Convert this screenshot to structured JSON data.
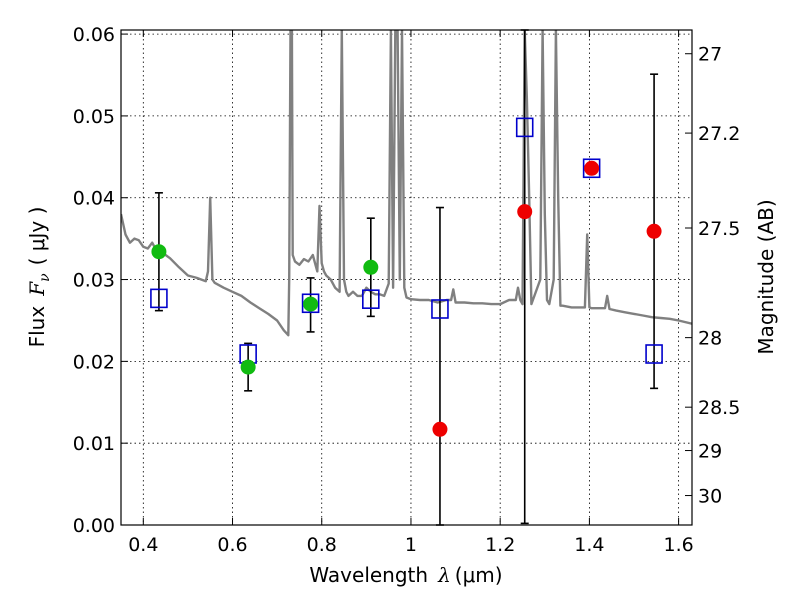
{
  "chart_data": {
    "type": "scatter",
    "xlabel": {
      "text": "Wavelength",
      "symbol": "λ",
      "unit": "(μm)"
    },
    "ylabel": {
      "text": "Flux",
      "symbol": "F",
      "subscript": "ν",
      "unit": "( μJy )"
    },
    "y2label": "Magnitude (AB)",
    "xlim": [
      0.35,
      1.63
    ],
    "ylim": [
      0.0,
      0.0605
    ],
    "grid": true,
    "x_ticks": [
      0.4,
      0.6,
      0.8,
      1.0,
      1.2,
      1.4,
      1.6
    ],
    "x_tick_labels": [
      "0.4",
      "0.6",
      "0.8",
      "1",
      "1.2",
      "1.4",
      "1.6"
    ],
    "y_ticks": [
      0.0,
      0.01,
      0.02,
      0.03,
      0.04,
      0.05,
      0.06
    ],
    "y_tick_labels": [
      "0.00",
      "0.01",
      "0.02",
      "0.03",
      "0.04",
      "0.05",
      "0.06"
    ],
    "y2_ticks": [
      {
        "label": "27",
        "flux": 0.0576
      },
      {
        "label": "27.2",
        "flux": 0.0479
      },
      {
        "label": "27.5",
        "flux": 0.0363
      },
      {
        "label": "28",
        "flux": 0.0229
      },
      {
        "label": "28.5",
        "flux": 0.0144
      },
      {
        "label": "29",
        "flux": 0.0091
      },
      {
        "label": "30",
        "flux": 0.0036
      }
    ],
    "colors": {
      "spectrum": "#808080",
      "detection": "#11bb11",
      "upper_limit": "#ee0000",
      "model": "#0000cc",
      "errorbar": "#000000"
    },
    "series": [
      {
        "kind": "observed_detection",
        "x": [
          0.435,
          0.635,
          0.775,
          0.91
        ],
        "y": [
          0.0334,
          0.0193,
          0.027,
          0.0315
        ],
        "yerr_low": [
          0.0262,
          0.0164,
          0.0236,
          0.0255
        ],
        "yerr_high": [
          0.0406,
          0.0222,
          0.0302,
          0.0375
        ]
      },
      {
        "kind": "observed_nondetection",
        "x": [
          1.065,
          1.255,
          1.405,
          1.545
        ],
        "y": [
          0.0117,
          0.0383,
          0.0436,
          0.0359
        ],
        "yerr_low": [
          0.0,
          0.0002,
          null,
          0.0167
        ],
        "yerr_high": [
          0.0388,
          0.0605,
          null,
          0.0551
        ]
      },
      {
        "kind": "model_photometry",
        "x": [
          0.435,
          0.635,
          0.775,
          0.91,
          1.065,
          1.255,
          1.405,
          1.545
        ],
        "y": [
          0.0277,
          0.0209,
          0.0271,
          0.0276,
          0.0264,
          0.0486,
          0.0436,
          0.0209
        ]
      },
      {
        "kind": "model_spectrum",
        "x": [
          0.35,
          0.36,
          0.37,
          0.38,
          0.39,
          0.4,
          0.41,
          0.42,
          0.43,
          0.44,
          0.45,
          0.46,
          0.48,
          0.5,
          0.52,
          0.54,
          0.545,
          0.55,
          0.555,
          0.56,
          0.58,
          0.6,
          0.62,
          0.64,
          0.66,
          0.68,
          0.7,
          0.715,
          0.725,
          0.727,
          0.73,
          0.733,
          0.735,
          0.74,
          0.75,
          0.76,
          0.77,
          0.78,
          0.79,
          0.795,
          0.8,
          0.805,
          0.81,
          0.82,
          0.83,
          0.84,
          0.845,
          0.85,
          0.855,
          0.86,
          0.87,
          0.88,
          0.89,
          0.9,
          0.91,
          0.92,
          0.93,
          0.94,
          0.95,
          0.955,
          0.96,
          0.965,
          0.97,
          0.975,
          0.98,
          0.985,
          0.99,
          1.0,
          1.02,
          1.04,
          1.06,
          1.08,
          1.09,
          1.095,
          1.1,
          1.12,
          1.14,
          1.16,
          1.18,
          1.2,
          1.22,
          1.235,
          1.24,
          1.245,
          1.25,
          1.255,
          1.26,
          1.265,
          1.27,
          1.29,
          1.295,
          1.3,
          1.305,
          1.31,
          1.32,
          1.325,
          1.33,
          1.335,
          1.34,
          1.36,
          1.38,
          1.39,
          1.395,
          1.4,
          1.405,
          1.41,
          1.42,
          1.435,
          1.44,
          1.445,
          1.46,
          1.48,
          1.5,
          1.52,
          1.54,
          1.56,
          1.58,
          1.6,
          1.63
        ],
        "y": [
          0.038,
          0.0355,
          0.0345,
          0.035,
          0.0348,
          0.034,
          0.0338,
          0.0345,
          0.0335,
          0.0332,
          0.033,
          0.0326,
          0.0315,
          0.0305,
          0.0302,
          0.0298,
          0.031,
          0.04,
          0.03,
          0.0296,
          0.029,
          0.0285,
          0.028,
          0.0272,
          0.0265,
          0.0258,
          0.025,
          0.0238,
          0.0232,
          0.03,
          0.0605,
          0.0605,
          0.033,
          0.0322,
          0.0318,
          0.0325,
          0.0322,
          0.033,
          0.031,
          0.039,
          0.032,
          0.031,
          0.0305,
          0.03,
          0.029,
          0.0285,
          0.0605,
          0.03,
          0.0285,
          0.028,
          0.0285,
          0.028,
          0.028,
          0.029,
          0.0285,
          0.0282,
          0.0282,
          0.028,
          0.0295,
          0.0605,
          0.029,
          0.0605,
          0.0605,
          0.03,
          0.0605,
          0.029,
          0.0278,
          0.0276,
          0.0275,
          0.0275,
          0.0272,
          0.0275,
          0.0275,
          0.0288,
          0.0272,
          0.0272,
          0.0271,
          0.0271,
          0.027,
          0.027,
          0.0275,
          0.0275,
          0.029,
          0.0275,
          0.027,
          0.0605,
          0.052,
          0.04,
          0.027,
          0.03,
          0.0605,
          0.038,
          0.0275,
          0.027,
          0.03,
          0.0605,
          0.04,
          0.0268,
          0.0268,
          0.0266,
          0.0266,
          0.0266,
          0.0355,
          0.0266,
          0.0265,
          0.0265,
          0.0265,
          0.0265,
          0.028,
          0.0264,
          0.0262,
          0.026,
          0.0258,
          0.0256,
          0.0254,
          0.0253,
          0.0252,
          0.025,
          0.0246
        ]
      }
    ]
  }
}
